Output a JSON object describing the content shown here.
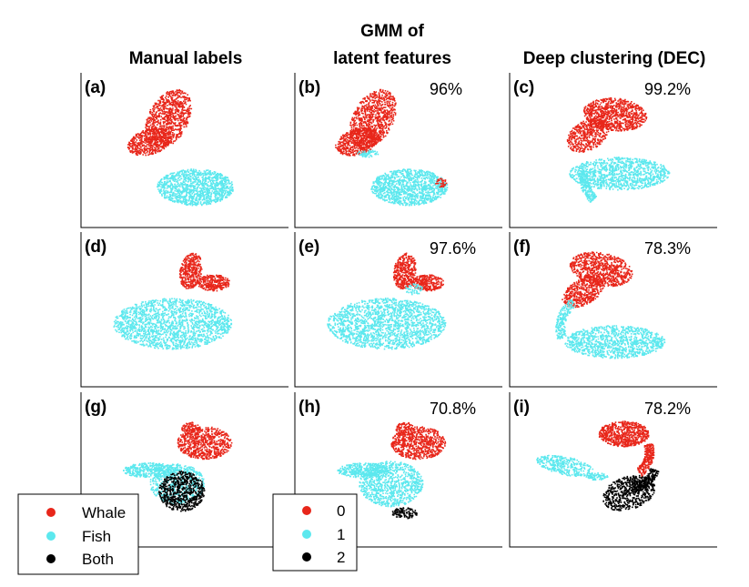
{
  "column_titles": {
    "manual": "Manual labels",
    "gmm_line1": "GMM of",
    "gmm_line2": "latent features",
    "dec": "Deep clustering (DEC)"
  },
  "legend_manual": {
    "entries": [
      {
        "label": "Whale",
        "color": "#e8261a"
      },
      {
        "label": "Fish",
        "color": "#5ce8ee"
      },
      {
        "label": "Both",
        "color": "#000000"
      }
    ]
  },
  "legend_clusters": {
    "entries": [
      {
        "label": "0",
        "color": "#e8261a"
      },
      {
        "label": "1",
        "color": "#5ce8ee"
      },
      {
        "label": "2",
        "color": "#000000"
      }
    ]
  },
  "colors": {
    "red": "#e8261a",
    "cyan": "#5ce8ee",
    "black": "#000000"
  },
  "chart_data": [
    {
      "type": "scatter",
      "panel": "(a)",
      "accuracy": "",
      "row": 0,
      "col": 0
    },
    {
      "type": "scatter",
      "panel": "(b)",
      "accuracy": "96%",
      "row": 0,
      "col": 1
    },
    {
      "type": "scatter",
      "panel": "(c)",
      "accuracy": "99.2%",
      "row": 0,
      "col": 2
    },
    {
      "type": "scatter",
      "panel": "(d)",
      "accuracy": "",
      "row": 1,
      "col": 0
    },
    {
      "type": "scatter",
      "panel": "(e)",
      "accuracy": "97.6%",
      "row": 1,
      "col": 1
    },
    {
      "type": "scatter",
      "panel": "(f)",
      "accuracy": "78.3%",
      "row": 1,
      "col": 2
    },
    {
      "type": "scatter",
      "panel": "(g)",
      "accuracy": "",
      "row": 2,
      "col": 0
    },
    {
      "type": "scatter",
      "panel": "(h)",
      "accuracy": "70.8%",
      "row": 2,
      "col": 1
    },
    {
      "type": "scatter",
      "panel": "(i)",
      "accuracy": "78.2%",
      "row": 2,
      "col": 2
    }
  ]
}
